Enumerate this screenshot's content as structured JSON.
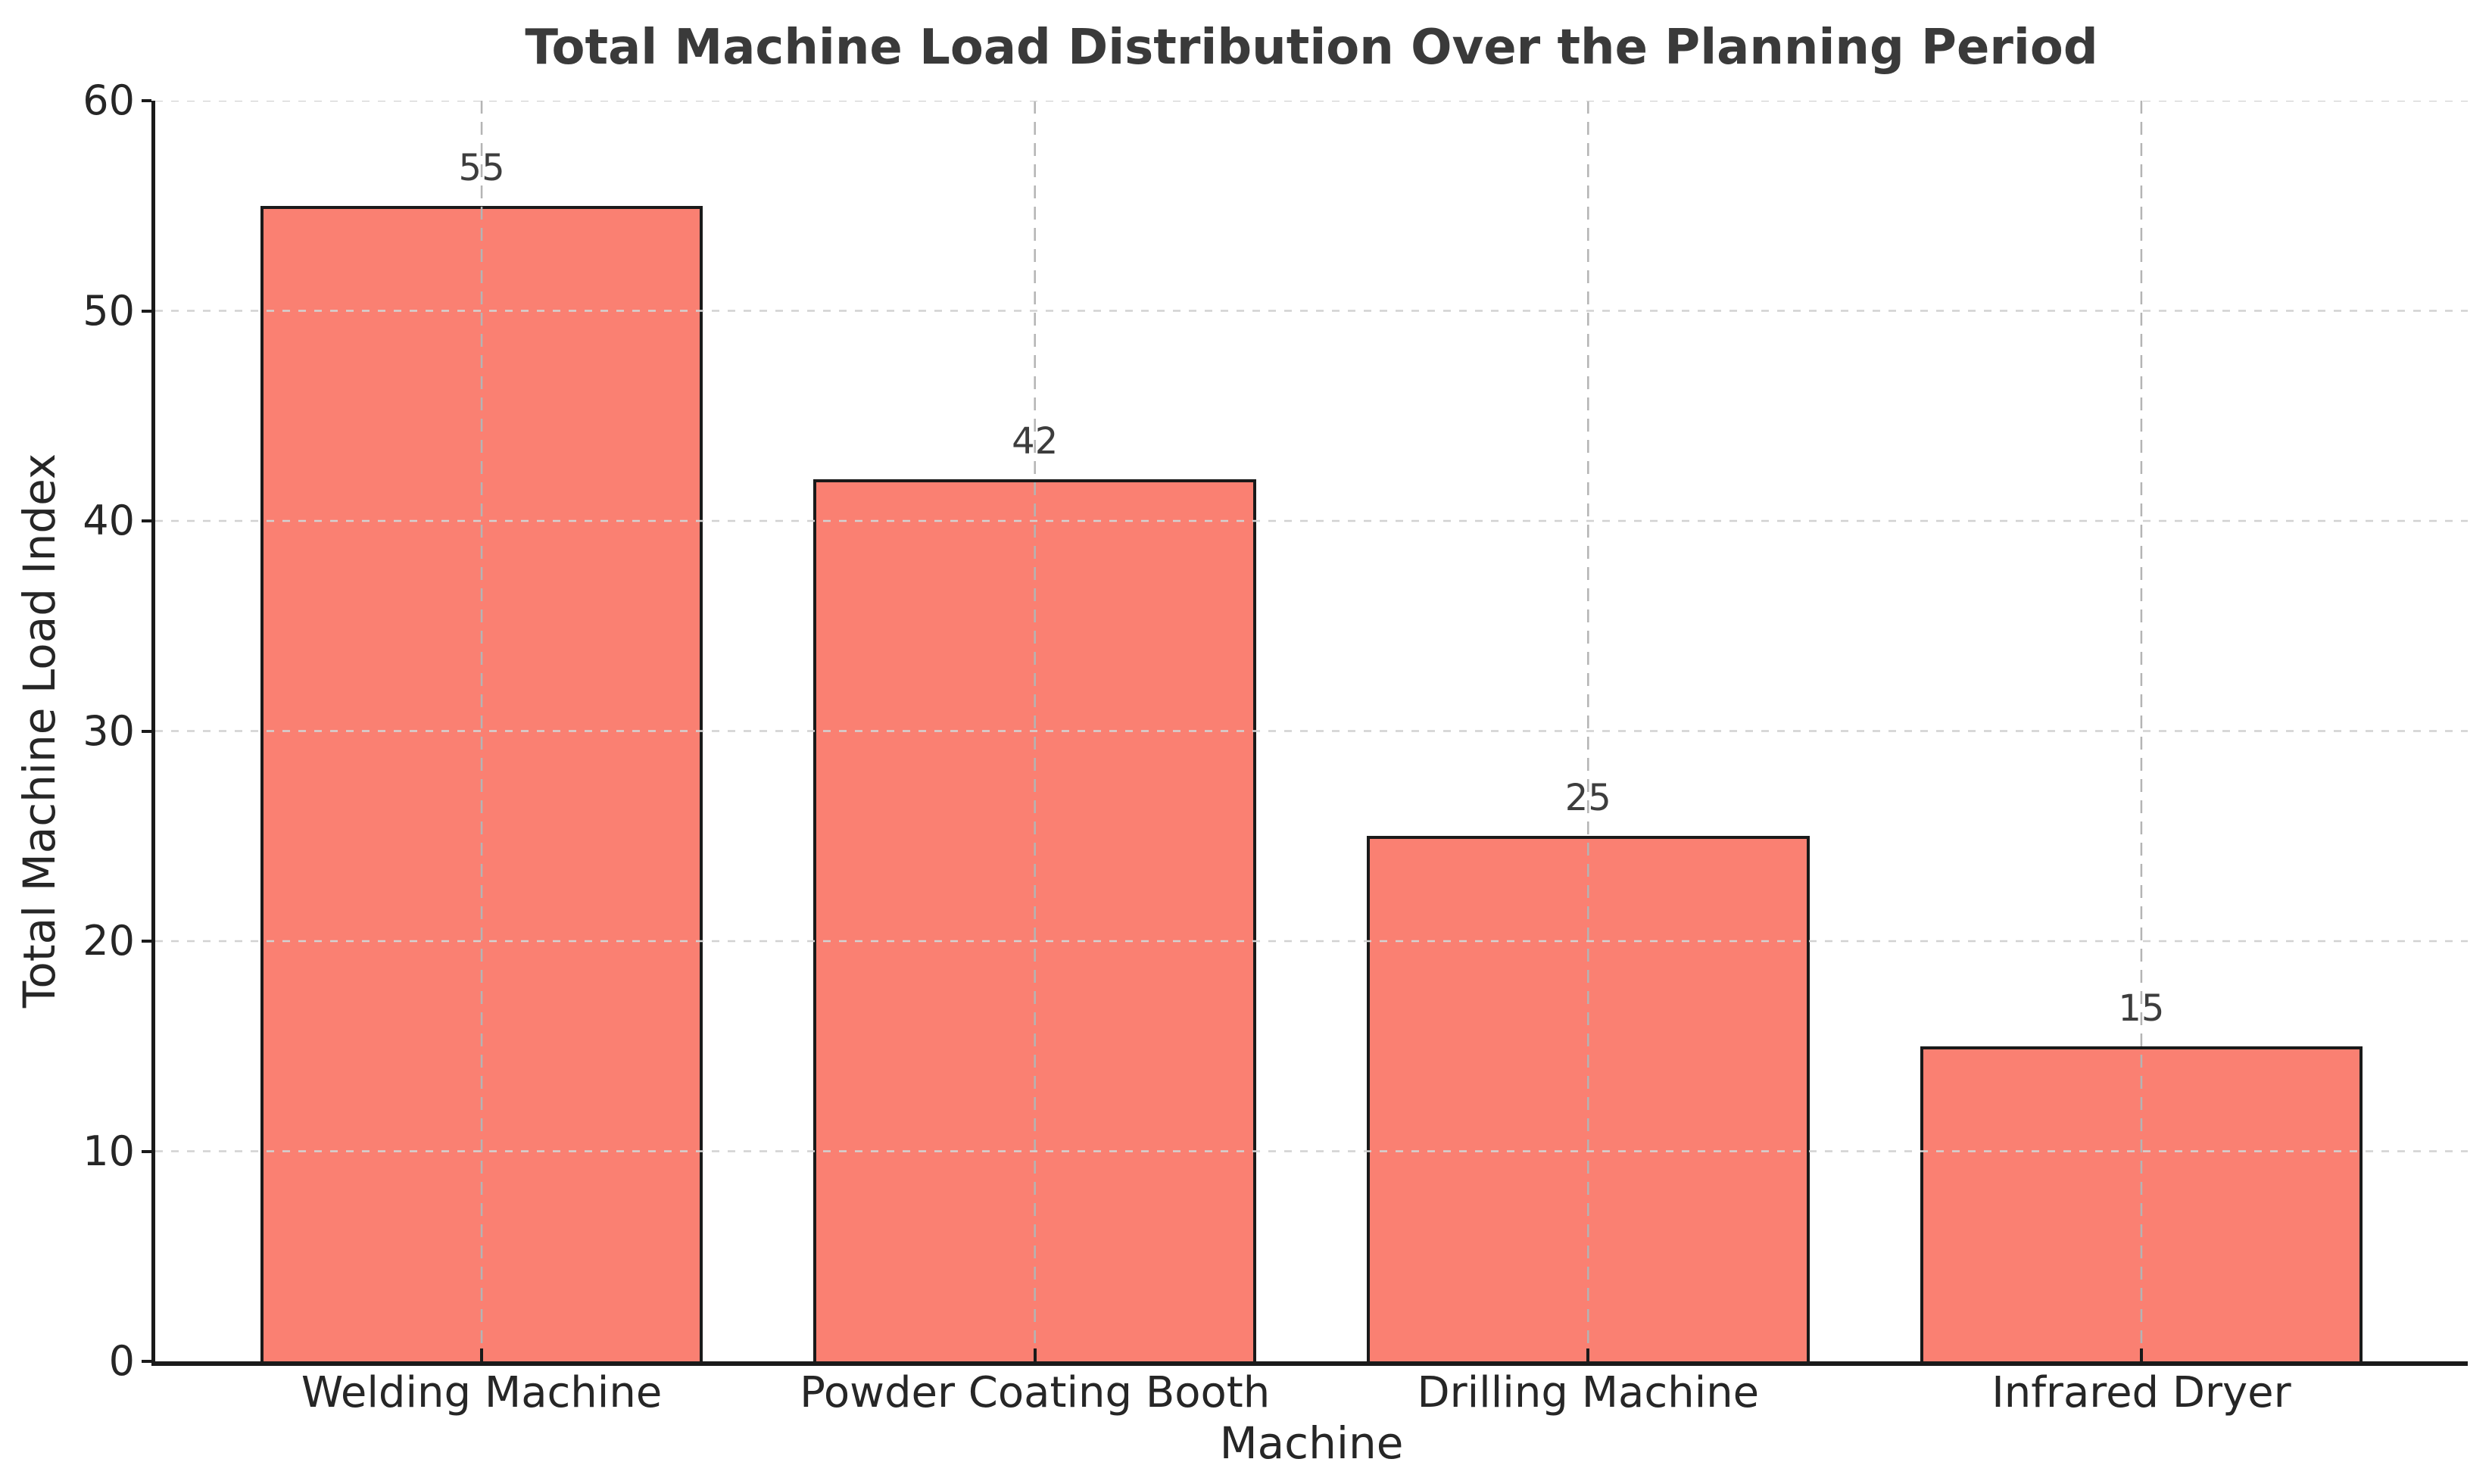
{
  "chart_data": {
    "type": "bar",
    "title": "Total Machine Load Distribution Over the Planning Period",
    "xlabel": "Machine",
    "ylabel": "Total Machine Load Index",
    "categories": [
      "Welding Machine",
      "Powder Coating Booth",
      "Drilling Machine",
      "Infrared Dryer"
    ],
    "values": [
      55,
      42,
      25,
      15
    ],
    "bar_value_labels": [
      "55",
      "42",
      "25",
      "15"
    ],
    "ylim": [
      0,
      60
    ],
    "yticks": [
      "0",
      "10",
      "20",
      "30",
      "40",
      "50",
      "60"
    ],
    "grid": "dashed gridlines on both axes, drawn over bars",
    "legend": "none",
    "colors": {
      "bar_fill": "#FA8072",
      "bar_edge": "#1a1a1a",
      "grid_horizontal": "#d2d2d2",
      "grid_vertical": "#b4b4b4",
      "title_text": "#3a3a3a",
      "tick_text": "#262626",
      "value_label_text": "#3d3d3d",
      "background": "#ffffff"
    }
  }
}
